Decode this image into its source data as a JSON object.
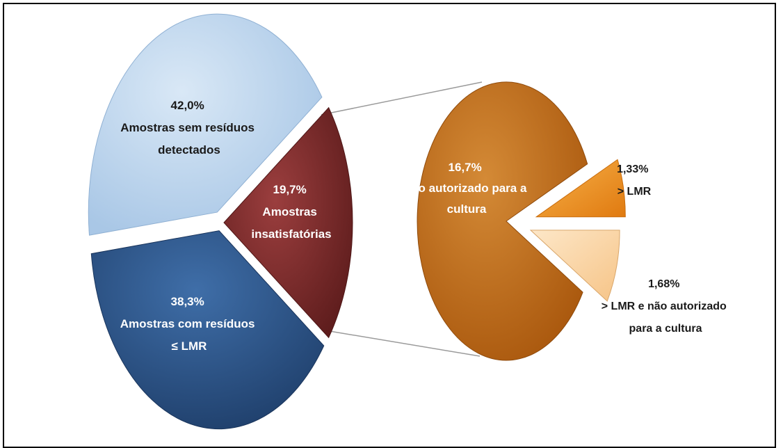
{
  "chart_data": [
    {
      "type": "pie",
      "slices": [
        {
          "value": 42.0,
          "value_label": "42,0%",
          "label_lines": [
            "Amostras sem resíduos",
            "detectados"
          ],
          "color": "#a9c7e6"
        },
        {
          "value": 19.7,
          "value_label": "19,7%",
          "label_lines": [
            "Amostras",
            "insatisfatórias"
          ],
          "color": "#7a2a2a"
        },
        {
          "value": 38.3,
          "value_label": "38,3%",
          "label_lines": [
            "Amostras com resíduos",
            "≤ LMR"
          ],
          "color": "#284f80"
        }
      ]
    },
    {
      "type": "pie",
      "slices": [
        {
          "value": 16.7,
          "value_label": "16,7%",
          "label_lines": [
            "Não autorizado para a",
            "cultura"
          ],
          "color": "#bf6a12"
        },
        {
          "value": 1.33,
          "value_label": "1,33%",
          "label_lines": [
            "> LMR"
          ],
          "color": "#f39a2a"
        },
        {
          "value": 1.68,
          "value_label": "1,68%",
          "label_lines": [
            "> LMR e não autorizado",
            "para a cultura"
          ],
          "color": "#fad6a6"
        }
      ]
    }
  ]
}
